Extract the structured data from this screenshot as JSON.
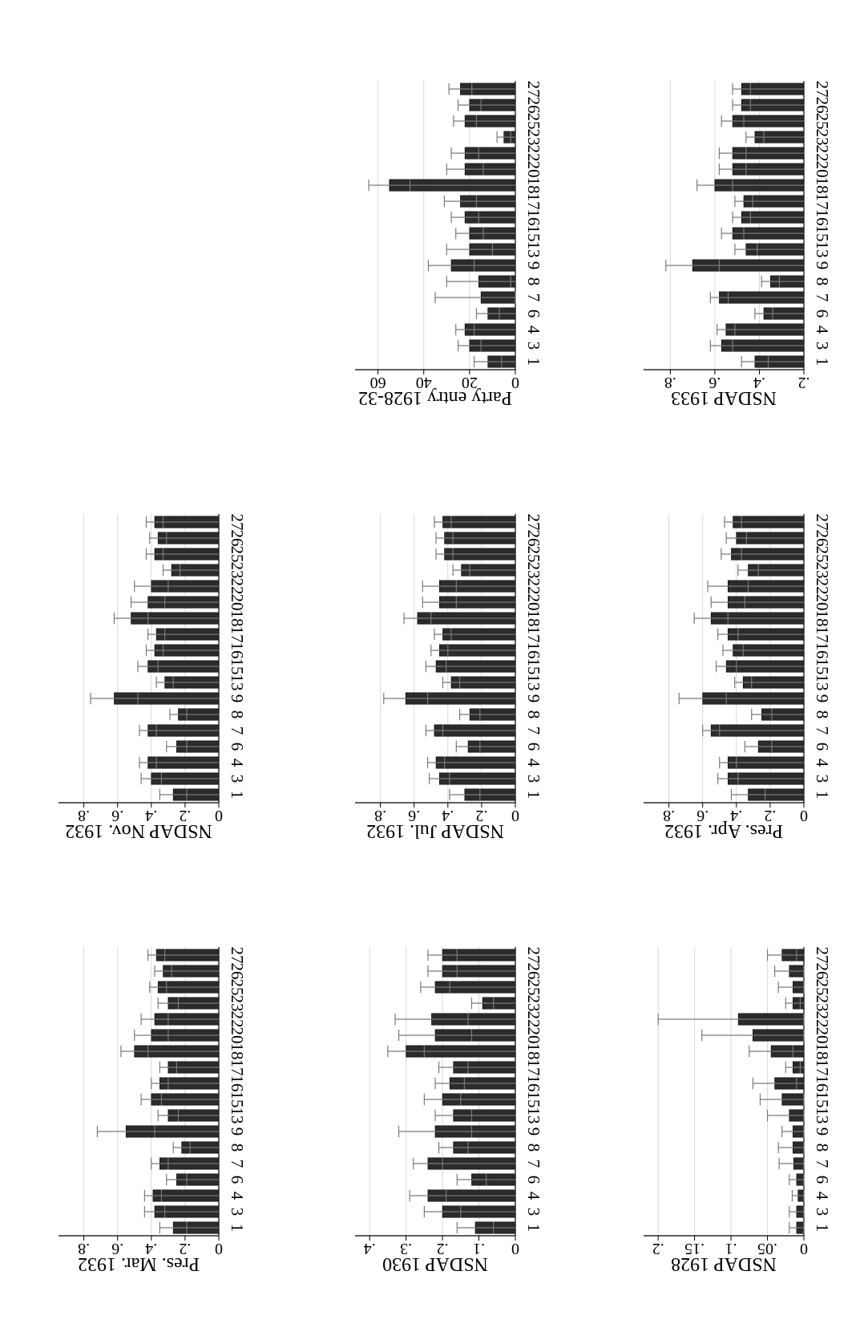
{
  "chart_data": [
    {
      "type": "bar",
      "title": "NSDAP 1928",
      "ylim": [
        0,
        0.22
      ],
      "yticks": [
        0,
        0.05,
        0.1,
        0.15,
        0.2
      ],
      "ytick_labels": [
        "0",
        ".05",
        ".1",
        ".15",
        ".2"
      ],
      "categories": [
        "1",
        "3",
        "4",
        "6",
        "7",
        "8",
        "9",
        "13",
        "15",
        "16",
        "17",
        "18",
        "20",
        "22",
        "23",
        "25",
        "26",
        "27"
      ],
      "values": [
        0.01,
        0.01,
        0.008,
        0.01,
        0.014,
        0.015,
        0.015,
        0.02,
        0.03,
        0.04,
        0.015,
        0.045,
        0.07,
        0.09,
        0.015,
        0.015,
        0.02,
        0.03
      ],
      "err": [
        0.01,
        0.01,
        0.008,
        0.01,
        0.02,
        0.02,
        0.015,
        0.03,
        0.03,
        0.03,
        0.01,
        0.03,
        0.07,
        0.11,
        0.01,
        0.02,
        0.02,
        0.02
      ]
    },
    {
      "type": "bar",
      "title": "NSDAP 1930",
      "ylim": [
        0,
        0.44
      ],
      "yticks": [
        0,
        0.1,
        0.2,
        0.3,
        0.4
      ],
      "ytick_labels": [
        "0",
        ".1",
        ".2",
        ".3",
        ".4"
      ],
      "categories": [
        "1",
        "3",
        "4",
        "6",
        "7",
        "8",
        "9",
        "13",
        "15",
        "16",
        "17",
        "18",
        "20",
        "22",
        "23",
        "25",
        "26",
        "27"
      ],
      "values": [
        0.11,
        0.2,
        0.24,
        0.12,
        0.24,
        0.17,
        0.22,
        0.17,
        0.2,
        0.18,
        0.17,
        0.3,
        0.22,
        0.23,
        0.09,
        0.22,
        0.2,
        0.2
      ],
      "err": [
        0.05,
        0.05,
        0.05,
        0.04,
        0.04,
        0.04,
        0.1,
        0.05,
        0.05,
        0.04,
        0.04,
        0.05,
        0.1,
        0.1,
        0.03,
        0.04,
        0.04,
        0.04
      ]
    },
    {
      "type": "bar",
      "title": "Pres. Mar. 1932",
      "ylim": [
        0,
        0.95
      ],
      "yticks": [
        0,
        0.2,
        0.4,
        0.6,
        0.8
      ],
      "ytick_labels": [
        "0",
        ".2",
        ".4",
        ".6",
        ".8"
      ],
      "categories": [
        "1",
        "3",
        "4",
        "6",
        "7",
        "8",
        "9",
        "13",
        "15",
        "16",
        "17",
        "18",
        "20",
        "22",
        "23",
        "25",
        "26",
        "27"
      ],
      "values": [
        0.27,
        0.38,
        0.39,
        0.25,
        0.35,
        0.22,
        0.55,
        0.3,
        0.4,
        0.35,
        0.3,
        0.5,
        0.4,
        0.38,
        0.3,
        0.36,
        0.33,
        0.37
      ],
      "err": [
        0.08,
        0.06,
        0.05,
        0.06,
        0.05,
        0.05,
        0.17,
        0.06,
        0.06,
        0.05,
        0.05,
        0.08,
        0.1,
        0.08,
        0.06,
        0.05,
        0.05,
        0.05
      ]
    },
    {
      "type": "bar",
      "title": "Pres. Apr. 1932",
      "ylim": [
        0,
        0.95
      ],
      "yticks": [
        0,
        0.2,
        0.4,
        0.6,
        0.8
      ],
      "ytick_labels": [
        "0",
        ".2",
        ".4",
        ".6",
        ".8"
      ],
      "categories": [
        "1",
        "3",
        "4",
        "6",
        "7",
        "8",
        "9",
        "13",
        "15",
        "16",
        "17",
        "18",
        "20",
        "22",
        "23",
        "25",
        "26",
        "27"
      ],
      "values": [
        0.33,
        0.45,
        0.45,
        0.27,
        0.55,
        0.25,
        0.6,
        0.36,
        0.46,
        0.42,
        0.45,
        0.55,
        0.45,
        0.45,
        0.33,
        0.43,
        0.4,
        0.42
      ],
      "err": [
        0.1,
        0.06,
        0.05,
        0.08,
        0.05,
        0.06,
        0.14,
        0.05,
        0.06,
        0.06,
        0.06,
        0.1,
        0.1,
        0.12,
        0.06,
        0.06,
        0.06,
        0.05
      ]
    },
    {
      "type": "bar",
      "title": "NSDAP Jul. 1932",
      "ylim": [
        0,
        0.95
      ],
      "yticks": [
        0,
        0.2,
        0.4,
        0.6,
        0.8
      ],
      "ytick_labels": [
        "0",
        ".2",
        ".4",
        ".6",
        ".8"
      ],
      "categories": [
        "1",
        "3",
        "4",
        "6",
        "7",
        "8",
        "9",
        "13",
        "15",
        "16",
        "17",
        "18",
        "20",
        "22",
        "23",
        "25",
        "26",
        "27"
      ],
      "values": [
        0.3,
        0.45,
        0.47,
        0.28,
        0.48,
        0.27,
        0.65,
        0.38,
        0.47,
        0.45,
        0.43,
        0.58,
        0.45,
        0.45,
        0.32,
        0.42,
        0.42,
        0.43
      ],
      "err": [
        0.09,
        0.06,
        0.05,
        0.07,
        0.05,
        0.06,
        0.13,
        0.05,
        0.06,
        0.05,
        0.05,
        0.08,
        0.1,
        0.1,
        0.05,
        0.05,
        0.05,
        0.05
      ]
    },
    {
      "type": "bar",
      "title": "NSDAP Nov. 1932",
      "ylim": [
        0,
        0.95
      ],
      "yticks": [
        0,
        0.2,
        0.4,
        0.6,
        0.8
      ],
      "ytick_labels": [
        "0",
        ".2",
        ".4",
        ".6",
        ".8"
      ],
      "categories": [
        "1",
        "3",
        "4",
        "6",
        "7",
        "8",
        "9",
        "13",
        "15",
        "16",
        "17",
        "18",
        "20",
        "22",
        "23",
        "25",
        "26",
        "27"
      ],
      "values": [
        0.27,
        0.4,
        0.42,
        0.25,
        0.42,
        0.24,
        0.62,
        0.32,
        0.42,
        0.38,
        0.37,
        0.52,
        0.42,
        0.4,
        0.28,
        0.38,
        0.36,
        0.38
      ],
      "err": [
        0.08,
        0.06,
        0.05,
        0.06,
        0.05,
        0.05,
        0.14,
        0.05,
        0.06,
        0.05,
        0.05,
        0.1,
        0.1,
        0.1,
        0.05,
        0.05,
        0.05,
        0.05
      ]
    },
    {
      "type": "bar",
      "title": "NSDAP 1933",
      "ylim": [
        0.2,
        0.92
      ],
      "yticks": [
        0.2,
        0.4,
        0.6,
        0.8
      ],
      "ytick_labels": [
        ".2",
        ".4",
        ".6",
        ".8"
      ],
      "categories": [
        "1",
        "3",
        "4",
        "6",
        "7",
        "8",
        "9",
        "13",
        "15",
        "16",
        "17",
        "18",
        "20",
        "22",
        "23",
        "25",
        "26",
        "27"
      ],
      "values": [
        0.42,
        0.57,
        0.55,
        0.38,
        0.58,
        0.35,
        0.7,
        0.46,
        0.52,
        0.48,
        0.47,
        0.6,
        0.52,
        0.52,
        0.42,
        0.52,
        0.48,
        0.48
      ],
      "err": [
        0.06,
        0.05,
        0.04,
        0.04,
        0.04,
        0.04,
        0.12,
        0.05,
        0.05,
        0.04,
        0.04,
        0.08,
        0.06,
        0.06,
        0.04,
        0.05,
        0.04,
        0.04
      ]
    },
    {
      "type": "bar",
      "title": "Party entry 1928-32",
      "ylim": [
        0,
        70
      ],
      "yticks": [
        0,
        20,
        40,
        60
      ],
      "ytick_labels": [
        "0",
        "20",
        "40",
        "60"
      ],
      "categories": [
        "1",
        "3",
        "4",
        "6",
        "7",
        "8",
        "9",
        "13",
        "15",
        "16",
        "17",
        "18",
        "20",
        "22",
        "23",
        "25",
        "26",
        "27"
      ],
      "values": [
        12,
        20,
        22,
        12,
        15,
        16,
        28,
        20,
        20,
        22,
        24,
        55,
        22,
        22,
        5,
        22,
        20,
        24
      ],
      "err": [
        6,
        5,
        4,
        5,
        20,
        14,
        10,
        10,
        6,
        6,
        7,
        9,
        8,
        6,
        3,
        5,
        5,
        5
      ]
    }
  ]
}
